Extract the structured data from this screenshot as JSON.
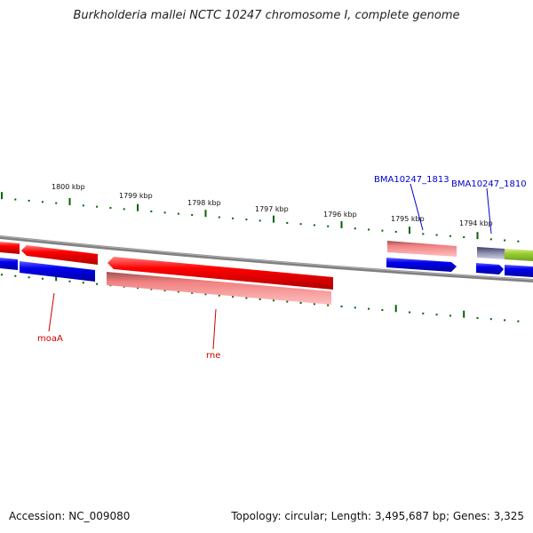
{
  "title": "Burkholderia mallei NCTC 10247 chromosome I, complete genome",
  "footer": {
    "accession": "Accession: NC_009080",
    "topology": "Topology: circular; Length: 3,495,687 bp; Genes: 3,325"
  },
  "ticks": [
    "1800 kbp",
    "1799 kbp",
    "1798 kbp",
    "1797 kbp",
    "1796 kbp",
    "1795 kbp",
    "1794 kbp"
  ],
  "genes": {
    "forward_named": [
      "BMA10247_1813",
      "BMA10247_1810"
    ],
    "reverse_named": [
      "moaA",
      "rne"
    ]
  },
  "colors": {
    "cds": "#ff0000",
    "cds_light": "#f08a8a",
    "gene": "#0000ee",
    "backbone": "#808080",
    "tick": "#006400",
    "forward_label": "#0000cc",
    "reverse_label": "#cc0000",
    "other_feature": "#9acd32"
  }
}
